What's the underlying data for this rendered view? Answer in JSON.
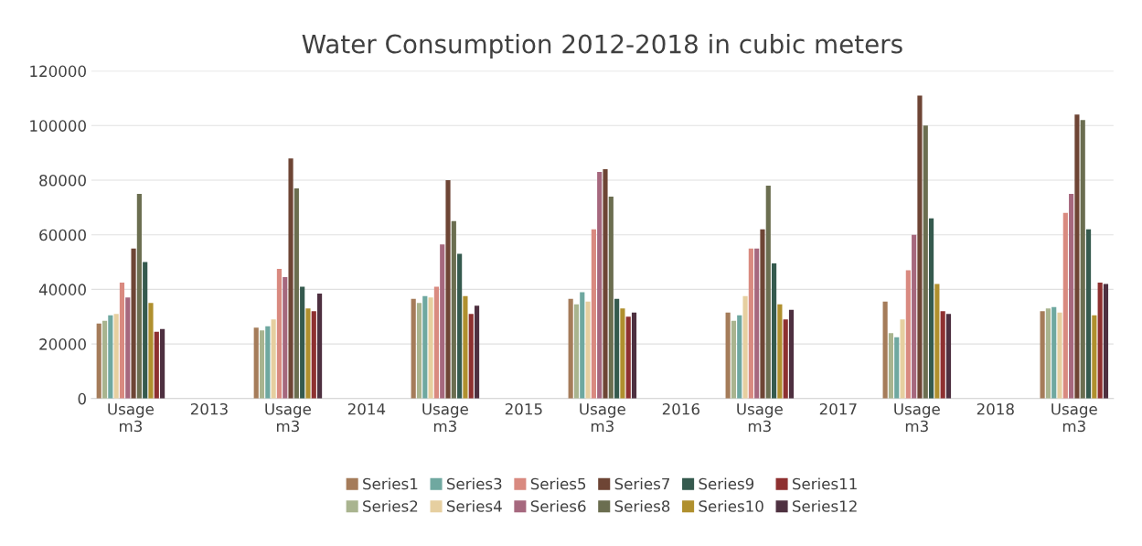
{
  "chart_data": {
    "type": "bar",
    "title": "Water Consumption 2012-2018 in cubic meters",
    "categories": [
      "Usage\nm3",
      "2013",
      "Usage\nm3",
      "2014",
      "Usage\nm3",
      "2015",
      "Usage\nm3",
      "2016",
      "Usage\nm3",
      "2017",
      "Usage\nm3",
      "2018",
      "Usage\nm3"
    ],
    "series": [
      {
        "name": "Series1",
        "color": "#a57c5a",
        "values": [
          27500,
          null,
          26000,
          null,
          36500,
          null,
          36500,
          null,
          31500,
          null,
          35500,
          null,
          32000
        ]
      },
      {
        "name": "Series2",
        "color": "#a9b48f",
        "values": [
          28500,
          null,
          25000,
          null,
          35000,
          null,
          34500,
          null,
          28500,
          null,
          24000,
          null,
          33000
        ]
      },
      {
        "name": "Series3",
        "color": "#6fa8a0",
        "values": [
          30500,
          null,
          26500,
          null,
          37500,
          null,
          39000,
          null,
          30500,
          null,
          22500,
          null,
          33500
        ]
      },
      {
        "name": "Series4",
        "color": "#e6cfa0",
        "values": [
          31000,
          null,
          29000,
          null,
          37000,
          null,
          35500,
          null,
          37500,
          null,
          29000,
          null,
          31500
        ]
      },
      {
        "name": "Series5",
        "color": "#d98a80",
        "values": [
          42500,
          null,
          47500,
          null,
          41000,
          null,
          62000,
          null,
          55000,
          null,
          47000,
          null,
          68000
        ]
      },
      {
        "name": "Series6",
        "color": "#a6687e",
        "values": [
          37000,
          null,
          44500,
          null,
          56500,
          null,
          83000,
          null,
          55000,
          null,
          60000,
          null,
          75000
        ]
      },
      {
        "name": "Series7",
        "color": "#6e4535",
        "values": [
          55000,
          null,
          88000,
          null,
          80000,
          null,
          84000,
          null,
          62000,
          null,
          111000,
          null,
          104000
        ]
      },
      {
        "name": "Series8",
        "color": "#6b6e50",
        "values": [
          75000,
          null,
          77000,
          null,
          65000,
          null,
          74000,
          null,
          78000,
          null,
          100000,
          null,
          102000
        ]
      },
      {
        "name": "Series9",
        "color": "#355a4e",
        "values": [
          50000,
          null,
          41000,
          null,
          53000,
          null,
          36500,
          null,
          49500,
          null,
          66000,
          null,
          62000
        ]
      },
      {
        "name": "Series10",
        "color": "#b0902e",
        "values": [
          35000,
          null,
          33000,
          null,
          37500,
          null,
          33000,
          null,
          34500,
          null,
          42000,
          null,
          30500
        ]
      },
      {
        "name": "Series11",
        "color": "#8e3030",
        "values": [
          24500,
          null,
          32000,
          null,
          31000,
          null,
          30000,
          null,
          29000,
          null,
          32000,
          null,
          42500
        ]
      },
      {
        "name": "Series12",
        "color": "#4e3040",
        "values": [
          25500,
          null,
          38500,
          null,
          34000,
          null,
          31500,
          null,
          32500,
          null,
          31000,
          null,
          42000
        ]
      }
    ],
    "ylim": [
      0,
      120000
    ],
    "yticks": [
      0,
      20000,
      40000,
      60000,
      80000,
      100000,
      120000
    ],
    "grid": "y",
    "legend": "bottom"
  }
}
